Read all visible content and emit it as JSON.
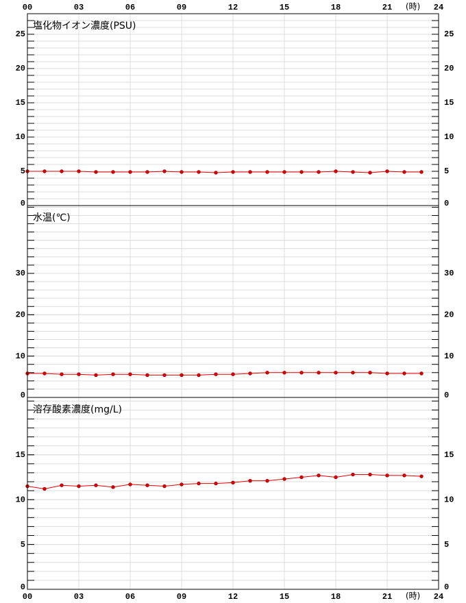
{
  "x_axis": {
    "xlim": [
      0,
      24
    ],
    "xticks": [
      {
        "value": 0,
        "label": "00"
      },
      {
        "value": 3,
        "label": "03"
      },
      {
        "value": 6,
        "label": "06"
      },
      {
        "value": 9,
        "label": "09"
      },
      {
        "value": 12,
        "label": "12"
      },
      {
        "value": 15,
        "label": "15"
      },
      {
        "value": 18,
        "label": "18"
      },
      {
        "value": 21,
        "label": "21"
      },
      24
    ],
    "label": "(時)"
  },
  "chart_data": [
    {
      "type": "line",
      "title": "塩化物イオン濃度(PSU)",
      "x": [
        0,
        1,
        2,
        3,
        4,
        5,
        6,
        7,
        8,
        9,
        10,
        11,
        12,
        13,
        14,
        15,
        16,
        17,
        18,
        19,
        20,
        21,
        22,
        23
      ],
      "series": [
        {
          "color": "#e00000",
          "values": [
            5.0,
            5.0,
            5.0,
            5.0,
            4.9,
            4.9,
            4.9,
            4.9,
            5.0,
            4.9,
            4.9,
            4.8,
            4.9,
            4.9,
            4.9,
            4.9,
            4.9,
            4.9,
            5.0,
            4.9,
            4.8,
            5.0,
            4.9,
            4.9
          ]
        }
      ],
      "ylim": [
        0,
        28
      ],
      "yticks": [
        0,
        5,
        10,
        15,
        20,
        25
      ],
      "grid": true
    },
    {
      "type": "line",
      "title": "水温(℃)",
      "x": [
        0,
        1,
        2,
        3,
        4,
        5,
        6,
        7,
        8,
        9,
        10,
        11,
        12,
        13,
        14,
        15,
        16,
        17,
        18,
        19,
        20,
        21,
        22,
        23
      ],
      "series": [
        {
          "color": "#e00000",
          "values": [
            5.8,
            5.8,
            5.6,
            5.6,
            5.4,
            5.6,
            5.6,
            5.4,
            5.4,
            5.4,
            5.4,
            5.6,
            5.6,
            5.8,
            6.0,
            6.0,
            6.0,
            6.0,
            6.0,
            6.0,
            6.0,
            5.8,
            5.8,
            5.8
          ]
        }
      ],
      "ylim": [
        0,
        46.4
      ],
      "yticks": [
        0,
        10,
        20,
        30
      ],
      "grid": true
    },
    {
      "type": "line",
      "title": "溶存酸素濃度(mg/L)",
      "x": [
        0,
        1,
        2,
        3,
        4,
        5,
        6,
        7,
        8,
        9,
        10,
        11,
        12,
        13,
        14,
        15,
        16,
        17,
        18,
        19,
        20,
        21,
        22,
        23
      ],
      "series": [
        {
          "color": "#e00000",
          "values": [
            11.5,
            11.2,
            11.6,
            11.5,
            11.6,
            11.4,
            11.7,
            11.6,
            11.5,
            11.7,
            11.8,
            11.8,
            11.9,
            12.1,
            12.1,
            12.3,
            12.5,
            12.7,
            12.5,
            12.8,
            12.8,
            12.7,
            12.7,
            12.6
          ]
        }
      ],
      "ylim": [
        0,
        21.4
      ],
      "yticks": [
        0,
        5,
        10,
        15
      ],
      "grid": true
    }
  ]
}
